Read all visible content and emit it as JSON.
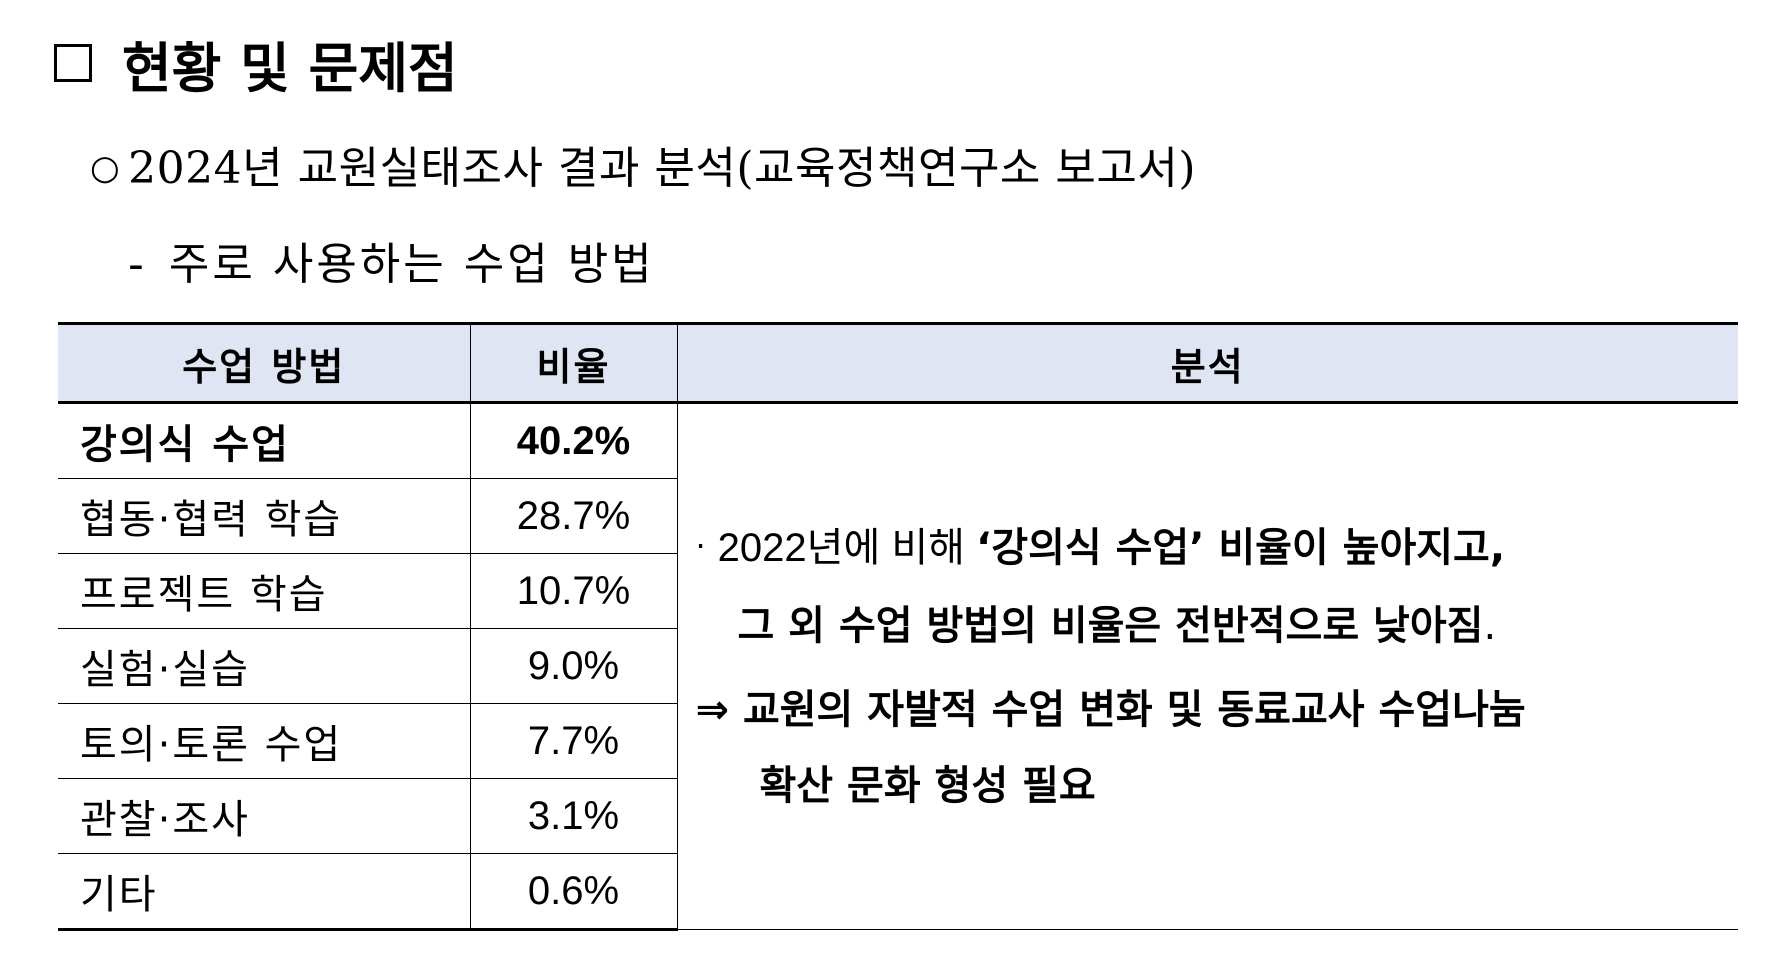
{
  "heading": {
    "title": "현황 및 문제점"
  },
  "subheading": {
    "bullet": "○",
    "text": "2024년 교원실태조사 결과 분석(교육정책연구소 보고서)"
  },
  "subitem": {
    "dash": "-",
    "text": "주로 사용하는 수업 방법"
  },
  "table": {
    "headers": [
      "수업 방법",
      "비율",
      "분석"
    ],
    "rows": [
      {
        "method": "강의식 수업",
        "ratio": "40.2%"
      },
      {
        "method": "협동·협력 학습",
        "ratio": "28.7%"
      },
      {
        "method": "프로젝트 학습",
        "ratio": "10.7%"
      },
      {
        "method": "실험·실습",
        "ratio": "9.0%"
      },
      {
        "method": "토의·토론 수업",
        "ratio": "7.7%"
      },
      {
        "method": "관찰·조사",
        "ratio": "3.1%"
      },
      {
        "method": "기타",
        "ratio": "0.6%"
      }
    ],
    "analysis": {
      "bullet": "·",
      "line1_prefix": "2022년에 비해 ",
      "line1_bold": "‘강의식 수업’ 비율이 높아지고,",
      "line2": "그 외 수업 방법의 비율은 전반적으로 낮아짐",
      "line2_end": ".",
      "conclusion_arrow": "⇒",
      "conclusion_line1": "교원의 자발적 수업 변화 및 동료교사 수업나눔",
      "conclusion_line2": "확산 문화 형성 필요"
    }
  }
}
